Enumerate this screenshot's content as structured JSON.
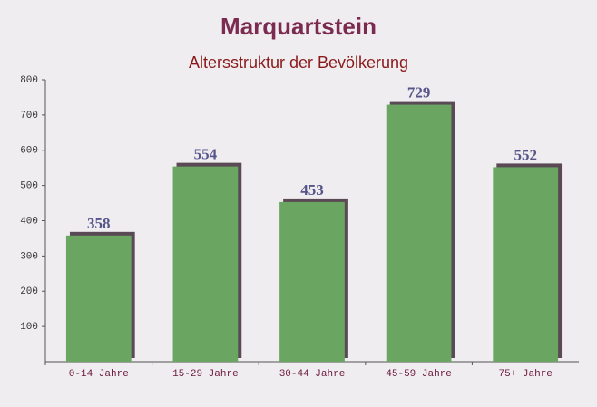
{
  "chart_data": {
    "type": "bar",
    "title": "Marquartstein",
    "subtitle": "Altersstruktur der Bevölkerung",
    "categories": [
      "0-14 Jahre",
      "15-29 Jahre",
      "30-44 Jahre",
      "45-59 Jahre",
      "75+ Jahre"
    ],
    "values": [
      358,
      554,
      453,
      729,
      552
    ],
    "color": "#6aa562",
    "ylim": [
      0,
      800
    ],
    "yticks": [
      100,
      200,
      300,
      400,
      500,
      600,
      700,
      800
    ]
  }
}
